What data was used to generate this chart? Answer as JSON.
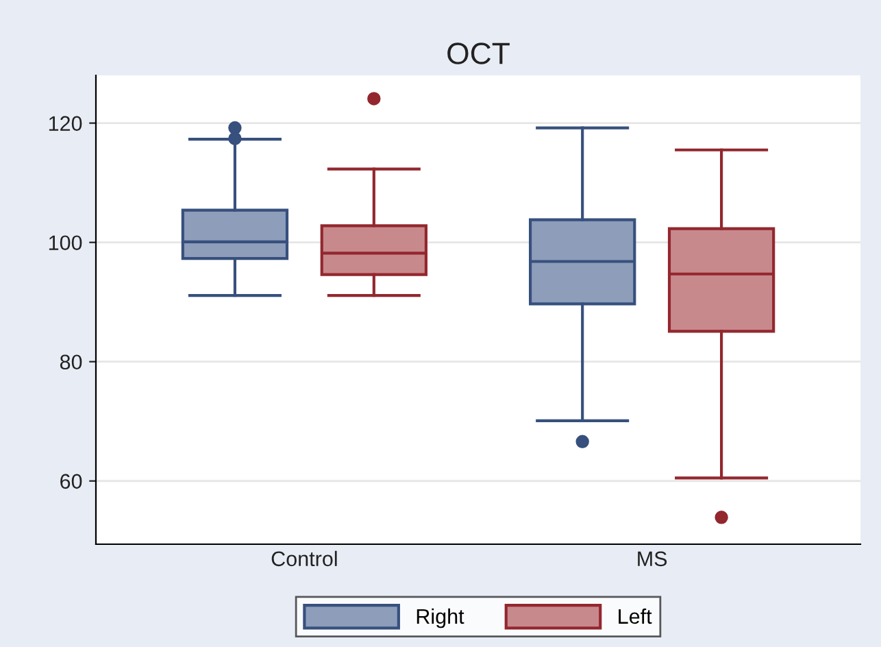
{
  "chart_data": {
    "type": "box",
    "title": "OCT",
    "categories": [
      "Control",
      "MS"
    ],
    "ylim": [
      49.4,
      128
    ],
    "yticks": [
      60,
      80,
      100,
      120
    ],
    "grid": "y",
    "legend": "bottom",
    "series": [
      {
        "name": "Right",
        "color": "#8d9dba",
        "boxes": [
          {
            "low": 91.1,
            "q1": 97.3,
            "median": 100.1,
            "q3": 105.4,
            "high": 117.3,
            "outliers": [
              119.2,
              117.4
            ]
          },
          {
            "low": 70.1,
            "q1": 89.7,
            "median": 96.8,
            "q3": 103.8,
            "high": 119.2,
            "outliers": [
              66.6
            ]
          }
        ]
      },
      {
        "name": "Left",
        "color": "#c8898d",
        "boxes": [
          {
            "low": 91.1,
            "q1": 94.6,
            "median": 98.2,
            "q3": 102.8,
            "high": 112.3,
            "outliers": [
              124.1
            ]
          },
          {
            "low": 60.5,
            "q1": 85.1,
            "median": 94.7,
            "q3": 102.3,
            "high": 115.5,
            "outliers": [
              53.9
            ]
          }
        ]
      }
    ]
  }
}
